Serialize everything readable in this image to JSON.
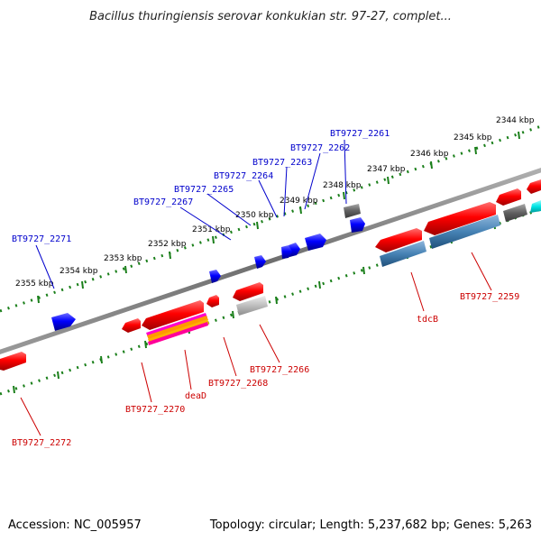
{
  "title": "Bacillus thuringiensis serovar konkukian str. 97-27, complet...",
  "footer": {
    "accession": "Accession: NC_005957",
    "summary": "Topology: circular; Length: 5,237,682 bp; Genes: 5,263"
  },
  "scale_labels": [
    "2344 kbp",
    "2345 kbp",
    "2346 kbp",
    "2347 kbp",
    "2348 kbp",
    "2349 kbp",
    "2350 kbp",
    "2351 kbp",
    "2352 kbp",
    "2353 kbp",
    "2354 kbp",
    "2355 kbp"
  ],
  "top_gene_labels": [
    "BT9727_2261",
    "BT9727_2262",
    "BT9727_2263",
    "BT9727_2264",
    "BT9727_2265",
    "BT9727_2267",
    "BT9727_2271"
  ],
  "bottom_gene_labels": [
    "BT9727_2259",
    "tdcB",
    "BT9727_2266",
    "BT9727_2268",
    "deaD",
    "BT9727_2270",
    "BT9727_2272"
  ],
  "colors": {
    "backbone": "#808080",
    "forward_gene": "#0000ff",
    "reverse_gene": "#ff0000",
    "grey_gene": "#707070",
    "blue_feature": "#4682b4",
    "cyan_feature": "#00e5e5",
    "tick_green": "#1a7f1a"
  }
}
